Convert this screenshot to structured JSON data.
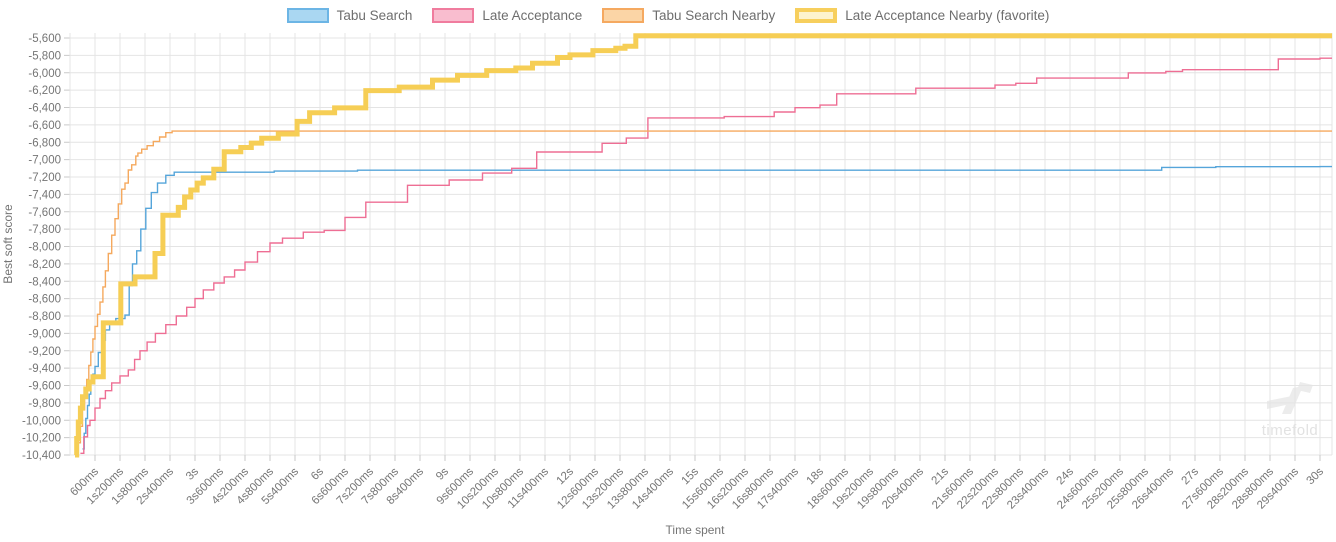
{
  "watermark": {
    "text": "timefold"
  },
  "chart_data": {
    "type": "line",
    "step": true,
    "title": "",
    "xlabel": "Time spent",
    "ylabel": "Best soft score",
    "grid": true,
    "legend_position": "top",
    "xlim_ms": [
      0,
      30000
    ],
    "x_tick_interval_ms": 600,
    "ylim": [
      -10400,
      -5600
    ],
    "y_tick_interval": 200,
    "x_tick_labels": [
      "600ms",
      "1s200ms",
      "1s800ms",
      "2s400ms",
      "3s",
      "3s600ms",
      "4s200ms",
      "4s800ms",
      "5s400ms",
      "6s",
      "6s600ms",
      "7s200ms",
      "7s800ms",
      "8s400ms",
      "9s",
      "9s600ms",
      "10s200ms",
      "10s800ms",
      "11s400ms",
      "12s",
      "12s600ms",
      "13s200ms",
      "13s800ms",
      "14s400ms",
      "15s",
      "15s600ms",
      "16s200ms",
      "16s800ms",
      "17s400ms",
      "18s",
      "18s600ms",
      "19s200ms",
      "19s800ms",
      "20s400ms",
      "21s",
      "21s600ms",
      "22s200ms",
      "22s800ms",
      "23s400ms",
      "24s",
      "24s600ms",
      "25s200ms",
      "25s800ms",
      "26s400ms",
      "27s",
      "27s600ms",
      "28s200ms",
      "28s800ms",
      "29s400ms",
      "30s"
    ],
    "y_tick_labels": [
      "-5,600",
      "-5,800",
      "-6,000",
      "-6,200",
      "-6,400",
      "-6,600",
      "-6,800",
      "-7,000",
      "-7,200",
      "-7,400",
      "-7,600",
      "-7,800",
      "-8,000",
      "-8,200",
      "-8,400",
      "-8,600",
      "-8,800",
      "-9,000",
      "-9,200",
      "-9,400",
      "-9,600",
      "-9,800",
      "-10,000",
      "-10,200",
      "-10,400"
    ],
    "point_format": "[seconds, best_soft_score]",
    "series": [
      {
        "name": "Tabu Search",
        "color": "#55a5da",
        "swatch_fill": "#aad7f2",
        "swatch_border": "#6cb5e5",
        "swatch_border_width": 2,
        "line_width": 1.4,
        "points": [
          [
            0.3,
            -10330
          ],
          [
            0.34,
            -10150
          ],
          [
            0.38,
            -9980
          ],
          [
            0.42,
            -9830
          ],
          [
            0.46,
            -9700
          ],
          [
            0.5,
            -9580
          ],
          [
            0.55,
            -9470
          ],
          [
            0.6,
            -9380
          ],
          [
            0.68,
            -9220
          ],
          [
            0.76,
            -9080
          ],
          [
            0.85,
            -8960
          ],
          [
            0.95,
            -8880
          ],
          [
            1.1,
            -8830
          ],
          [
            1.32,
            -8790
          ],
          [
            1.42,
            -8450
          ],
          [
            1.5,
            -8200
          ],
          [
            1.6,
            -8050
          ],
          [
            1.7,
            -7800
          ],
          [
            1.82,
            -7560
          ],
          [
            1.95,
            -7380
          ],
          [
            2.1,
            -7270
          ],
          [
            2.3,
            -7180
          ],
          [
            2.5,
            -7145
          ],
          [
            4.9,
            -7132
          ],
          [
            6.9,
            -7122
          ],
          [
            26.2,
            -7090
          ],
          [
            27.5,
            -7082
          ],
          [
            30.0,
            -7080
          ]
        ]
      },
      {
        "name": "Late Acceptance",
        "color": "#ee6e94",
        "swatch_fill": "#f9bdcf",
        "swatch_border": "#f07c9e",
        "swatch_border_width": 2,
        "line_width": 1.4,
        "points": [
          [
            0.25,
            -10380
          ],
          [
            0.33,
            -10190
          ],
          [
            0.42,
            -10060
          ],
          [
            0.48,
            -10000
          ],
          [
            0.6,
            -9860
          ],
          [
            0.72,
            -9750
          ],
          [
            0.85,
            -9660
          ],
          [
            1.0,
            -9570
          ],
          [
            1.2,
            -9490
          ],
          [
            1.4,
            -9420
          ],
          [
            1.55,
            -9300
          ],
          [
            1.68,
            -9200
          ],
          [
            1.85,
            -9100
          ],
          [
            2.05,
            -9000
          ],
          [
            2.3,
            -8900
          ],
          [
            2.55,
            -8800
          ],
          [
            2.8,
            -8700
          ],
          [
            3.0,
            -8600
          ],
          [
            3.2,
            -8500
          ],
          [
            3.45,
            -8420
          ],
          [
            3.7,
            -8350
          ],
          [
            3.95,
            -8270
          ],
          [
            4.2,
            -8180
          ],
          [
            4.5,
            -8060
          ],
          [
            4.8,
            -7960
          ],
          [
            5.1,
            -7905
          ],
          [
            5.6,
            -7835
          ],
          [
            6.1,
            -7815
          ],
          [
            6.6,
            -7665
          ],
          [
            7.1,
            -7490
          ],
          [
            8.1,
            -7295
          ],
          [
            9.1,
            -7235
          ],
          [
            9.9,
            -7155
          ],
          [
            10.6,
            -7100
          ],
          [
            11.2,
            -6912
          ],
          [
            12.77,
            -6812
          ],
          [
            13.35,
            -6752
          ],
          [
            13.87,
            -6520
          ],
          [
            15.7,
            -6505
          ],
          [
            16.9,
            -6452
          ],
          [
            17.4,
            -6402
          ],
          [
            18.0,
            -6372
          ],
          [
            18.4,
            -6242
          ],
          [
            20.3,
            -6178
          ],
          [
            22.2,
            -6142
          ],
          [
            22.7,
            -6122
          ],
          [
            23.2,
            -6062
          ],
          [
            25.4,
            -6002
          ],
          [
            26.3,
            -5985
          ],
          [
            26.7,
            -5965
          ],
          [
            29.0,
            -5842
          ],
          [
            30.0,
            -5832
          ]
        ]
      },
      {
        "name": "Tabu Search Nearby",
        "color": "#f5a95e",
        "swatch_fill": "#fbd5a6",
        "swatch_border": "#f5a960",
        "swatch_border_width": 2,
        "line_width": 1.4,
        "points": [
          [
            0.2,
            -10260
          ],
          [
            0.25,
            -10070
          ],
          [
            0.3,
            -9880
          ],
          [
            0.35,
            -9700
          ],
          [
            0.4,
            -9530
          ],
          [
            0.45,
            -9370
          ],
          [
            0.5,
            -9215
          ],
          [
            0.55,
            -9065
          ],
          [
            0.6,
            -8920
          ],
          [
            0.66,
            -8780
          ],
          [
            0.72,
            -8640
          ],
          [
            0.79,
            -8465
          ],
          [
            0.85,
            -8280
          ],
          [
            0.92,
            -8080
          ],
          [
            1.0,
            -7870
          ],
          [
            1.08,
            -7680
          ],
          [
            1.16,
            -7510
          ],
          [
            1.24,
            -7340
          ],
          [
            1.32,
            -7270
          ],
          [
            1.4,
            -7120
          ],
          [
            1.48,
            -7060
          ],
          [
            1.58,
            -6960
          ],
          [
            1.63,
            -6925
          ],
          [
            1.72,
            -6880
          ],
          [
            1.85,
            -6840
          ],
          [
            2.0,
            -6790
          ],
          [
            2.15,
            -6740
          ],
          [
            2.3,
            -6690
          ],
          [
            2.45,
            -6672
          ],
          [
            30.0,
            -6672
          ]
        ]
      },
      {
        "name": "Late Acceptance Nearby (favorite)",
        "color": "#f6ce55",
        "swatch_fill": "#fdf3cf",
        "swatch_border": "#f7cf5d",
        "swatch_border_width": 4,
        "line_width": 5,
        "points": [
          [
            0.12,
            -10400
          ],
          [
            0.16,
            -10210
          ],
          [
            0.2,
            -10020
          ],
          [
            0.25,
            -9860
          ],
          [
            0.3,
            -9730
          ],
          [
            0.38,
            -9640
          ],
          [
            0.46,
            -9560
          ],
          [
            0.55,
            -9500
          ],
          [
            0.8,
            -8880
          ],
          [
            1.22,
            -8430
          ],
          [
            1.56,
            -8350
          ],
          [
            2.04,
            -8080
          ],
          [
            2.23,
            -7640
          ],
          [
            2.6,
            -7550
          ],
          [
            2.75,
            -7430
          ],
          [
            2.9,
            -7350
          ],
          [
            3.05,
            -7270
          ],
          [
            3.2,
            -7210
          ],
          [
            3.45,
            -7110
          ],
          [
            3.7,
            -6910
          ],
          [
            4.1,
            -6860
          ],
          [
            4.35,
            -6810
          ],
          [
            4.6,
            -6755
          ],
          [
            5.0,
            -6705
          ],
          [
            5.45,
            -6560
          ],
          [
            5.75,
            -6460
          ],
          [
            6.35,
            -6405
          ],
          [
            7.1,
            -6205
          ],
          [
            7.9,
            -6165
          ],
          [
            8.7,
            -6085
          ],
          [
            9.3,
            -6030
          ],
          [
            10.0,
            -5975
          ],
          [
            10.7,
            -5945
          ],
          [
            11.1,
            -5890
          ],
          [
            11.7,
            -5825
          ],
          [
            12.0,
            -5795
          ],
          [
            12.55,
            -5745
          ],
          [
            13.1,
            -5718
          ],
          [
            13.32,
            -5695
          ],
          [
            13.58,
            -5575
          ],
          [
            30.0,
            -5575
          ]
        ]
      }
    ]
  }
}
